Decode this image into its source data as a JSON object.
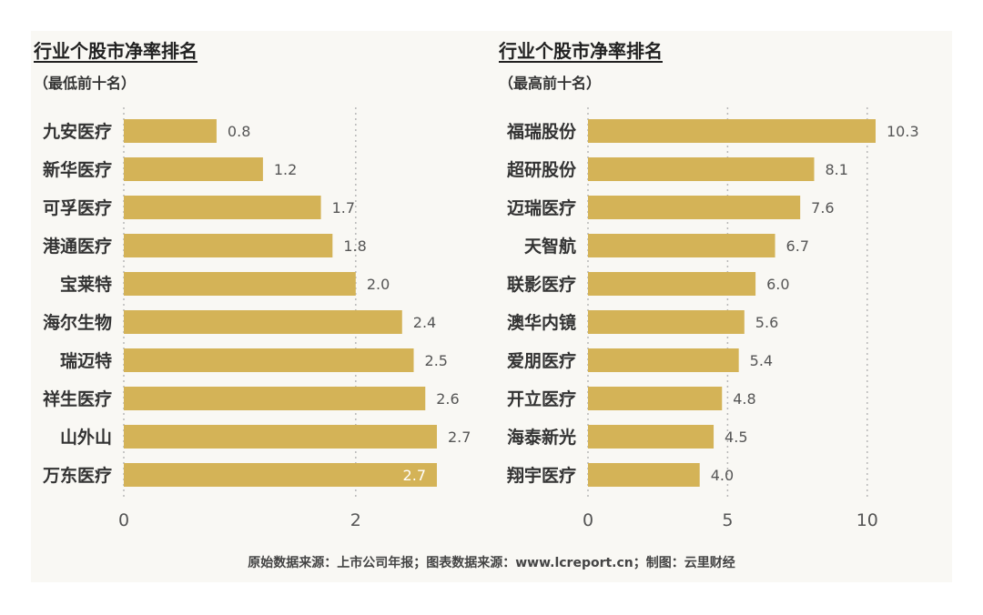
{
  "chart_data": [
    {
      "type": "bar",
      "orientation": "horizontal",
      "title": "行业个股市净率排名",
      "subtitle": "（最低前十名）",
      "categories": [
        "九安医疗",
        "新华医疗",
        "可孚医疗",
        "港通医疗",
        "宝莱特",
        "海尔生物",
        "瑞迈特",
        "祥生医疗",
        "山外山",
        "万东医疗"
      ],
      "values": [
        0.8,
        1.2,
        1.7,
        1.8,
        2.0,
        2.4,
        2.5,
        2.6,
        2.7,
        2.7
      ],
      "value_labels": [
        "0.8",
        "1.2",
        "1.7",
        "1.8",
        "2.0",
        "2.4",
        "2.5",
        "2.6",
        "2.7",
        "2.7"
      ],
      "xlim": [
        0,
        2.7
      ],
      "xticks": [
        0,
        2
      ],
      "xtick_labels": [
        "0",
        "2"
      ],
      "grid": true,
      "bar_color": "#d4b357"
    },
    {
      "type": "bar",
      "orientation": "horizontal",
      "title": "行业个股市净率排名",
      "subtitle": "（最高前十名）",
      "categories": [
        "福瑞股份",
        "超研股份",
        "迈瑞医疗",
        "天智航",
        "联影医疗",
        "澳华内镜",
        "爱朋医疗",
        "开立医疗",
        "海泰新光",
        "翔宇医疗"
      ],
      "values": [
        10.3,
        8.1,
        7.6,
        6.7,
        6.0,
        5.6,
        5.4,
        4.8,
        4.5,
        4.0
      ],
      "value_labels": [
        "10.3",
        "8.1",
        "7.6",
        "6.7",
        "6.0",
        "5.6",
        "5.4",
        "4.8",
        "4.5",
        "4.0"
      ],
      "xlim": [
        0,
        10.3
      ],
      "xticks": [
        0,
        5,
        10
      ],
      "xtick_labels": [
        "0",
        "5",
        "10"
      ],
      "grid": true,
      "bar_color": "#d4b357"
    }
  ],
  "footer": "原始数据来源：上市公司年报；图表数据来源：www.lcreport.cn；制图：云里财经"
}
